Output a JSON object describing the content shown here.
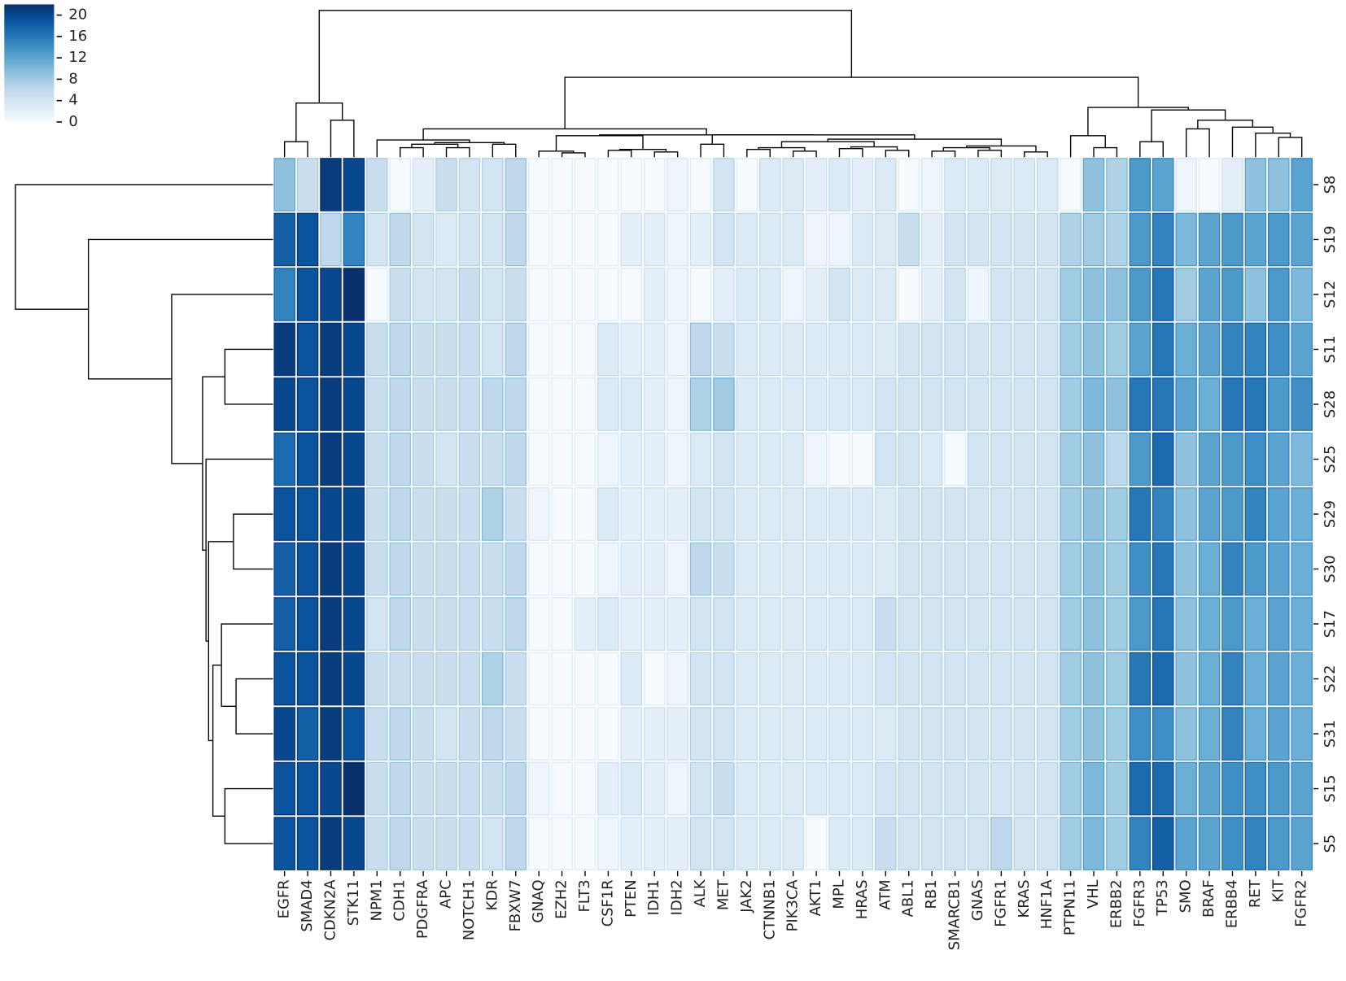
{
  "chart_data": {
    "type": "heatmap",
    "title": "",
    "xlabel": "",
    "ylabel": "",
    "colormap": "Blues",
    "vmin": 0,
    "vmax": 22,
    "colorbar": {
      "ticks": [
        0,
        4,
        8,
        12,
        16,
        20
      ],
      "placement": "top-left"
    },
    "row_dendrogram": true,
    "col_dendrogram": true,
    "columns": [
      "EGFR",
      "SMAD4",
      "CDKN2A",
      "STK11",
      "NPM1",
      "CDH1",
      "PDGFRA",
      "APC",
      "NOTCH1",
      "KDR",
      "FBXW7",
      "GNAQ",
      "EZH2",
      "FLT3",
      "CSF1R",
      "PTEN",
      "IDH1",
      "IDH2",
      "ALK",
      "MET",
      "JAK2",
      "CTNNB1",
      "PIK3CA",
      "AKT1",
      "MPL",
      "HRAS",
      "ATM",
      "ABL1",
      "RB1",
      "SMARCB1",
      "GNAS",
      "FGFR1",
      "KRAS",
      "HNF1A",
      "PTPN11",
      "VHL",
      "ERBB2",
      "FGFR3",
      "TP53",
      "SMO",
      "BRAF",
      "ERBB4",
      "RET",
      "KIT",
      "FGFR2"
    ],
    "rows": [
      "S8",
      "S19",
      "S12",
      "S11",
      "S28",
      "S25",
      "S29",
      "S30",
      "S17",
      "S22",
      "S31",
      "S15",
      "S5"
    ],
    "values": [
      [
        9,
        5,
        21,
        20,
        5,
        0,
        2,
        5,
        4,
        4,
        6,
        0,
        0,
        0,
        0,
        0,
        0,
        1,
        0,
        4,
        0,
        3,
        3,
        2,
        3,
        2,
        3,
        0,
        1,
        3,
        3,
        3,
        3,
        3,
        0,
        9,
        7,
        13,
        12,
        1,
        0,
        2,
        9,
        9,
        12
      ],
      [
        18,
        19,
        6,
        15,
        4,
        6,
        4,
        3,
        4,
        4,
        6,
        0,
        0,
        0,
        0,
        2,
        2,
        1,
        2,
        4,
        3,
        3,
        3,
        1,
        1,
        3,
        3,
        5,
        2,
        4,
        4,
        4,
        4,
        4,
        7,
        8,
        7,
        13,
        15,
        10,
        12,
        13,
        12,
        13,
        12
      ],
      [
        15,
        19,
        20,
        22,
        0,
        5,
        4,
        4,
        5,
        4,
        5,
        0,
        0,
        0,
        0,
        0,
        2,
        1,
        0,
        2,
        3,
        3,
        1,
        2,
        4,
        3,
        3,
        0,
        2,
        4,
        1,
        4,
        4,
        4,
        8,
        9,
        9,
        13,
        16,
        8,
        12,
        13,
        9,
        13,
        10
      ],
      [
        21,
        19,
        21,
        20,
        5,
        6,
        5,
        5,
        5,
        4,
        6,
        0,
        0,
        0,
        3,
        2,
        2,
        1,
        6,
        5,
        3,
        3,
        3,
        3,
        3,
        3,
        3,
        4,
        4,
        4,
        4,
        4,
        4,
        4,
        8,
        9,
        8,
        12,
        16,
        11,
        12,
        15,
        15,
        14,
        12
      ],
      [
        20,
        19,
        21,
        20,
        5,
        6,
        5,
        5,
        5,
        6,
        6,
        0,
        0,
        0,
        3,
        3,
        2,
        1,
        7,
        8,
        3,
        3,
        3,
        3,
        3,
        3,
        4,
        4,
        4,
        4,
        4,
        4,
        4,
        4,
        8,
        10,
        9,
        16,
        16,
        12,
        11,
        16,
        16,
        13,
        14
      ],
      [
        17,
        19,
        21,
        20,
        5,
        6,
        5,
        4,
        5,
        5,
        6,
        0,
        0,
        0,
        1,
        2,
        2,
        1,
        3,
        4,
        3,
        3,
        3,
        1,
        0,
        0,
        4,
        4,
        3,
        0,
        4,
        4,
        4,
        4,
        8,
        9,
        6,
        13,
        17,
        9,
        12,
        13,
        14,
        12,
        10
      ],
      [
        19,
        19,
        20,
        20,
        5,
        6,
        5,
        5,
        5,
        7,
        5,
        1,
        0,
        0,
        3,
        2,
        2,
        2,
        4,
        4,
        3,
        3,
        3,
        3,
        3,
        3,
        3,
        4,
        4,
        4,
        4,
        4,
        4,
        4,
        8,
        9,
        8,
        16,
        15,
        9,
        12,
        13,
        15,
        12,
        11
      ],
      [
        18,
        19,
        21,
        20,
        5,
        6,
        5,
        5,
        5,
        5,
        6,
        0,
        0,
        0,
        1,
        2,
        2,
        1,
        6,
        5,
        3,
        3,
        3,
        3,
        3,
        3,
        3,
        4,
        4,
        4,
        4,
        4,
        4,
        4,
        8,
        9,
        8,
        14,
        16,
        9,
        11,
        15,
        13,
        12,
        11
      ],
      [
        18,
        19,
        21,
        20,
        4,
        6,
        5,
        5,
        5,
        5,
        6,
        0,
        0,
        2,
        3,
        2,
        2,
        2,
        4,
        4,
        3,
        3,
        3,
        3,
        3,
        3,
        5,
        4,
        4,
        4,
        4,
        4,
        4,
        4,
        8,
        9,
        8,
        13,
        16,
        9,
        11,
        13,
        11,
        12,
        11
      ],
      [
        19,
        19,
        21,
        20,
        5,
        5,
        5,
        5,
        5,
        7,
        5,
        0,
        0,
        0,
        0,
        3,
        0,
        1,
        4,
        4,
        3,
        3,
        3,
        3,
        3,
        3,
        4,
        4,
        4,
        4,
        4,
        4,
        4,
        4,
        8,
        9,
        8,
        16,
        17,
        9,
        11,
        15,
        11,
        12,
        11
      ],
      [
        20,
        18,
        21,
        19,
        5,
        6,
        5,
        4,
        5,
        6,
        5,
        0,
        0,
        0,
        0,
        2,
        2,
        2,
        4,
        4,
        3,
        3,
        3,
        3,
        3,
        3,
        3,
        4,
        4,
        4,
        4,
        4,
        4,
        4,
        8,
        9,
        8,
        14,
        14,
        9,
        11,
        15,
        11,
        12,
        11
      ],
      [
        19,
        19,
        20,
        22,
        5,
        6,
        5,
        5,
        5,
        5,
        6,
        1,
        0,
        0,
        2,
        3,
        2,
        1,
        4,
        5,
        3,
        3,
        3,
        3,
        3,
        3,
        4,
        4,
        4,
        4,
        4,
        4,
        4,
        4,
        8,
        10,
        8,
        17,
        17,
        11,
        12,
        14,
        14,
        13,
        12
      ],
      [
        19,
        19,
        21,
        20,
        5,
        6,
        5,
        5,
        5,
        4,
        6,
        0,
        0,
        0,
        1,
        2,
        2,
        2,
        4,
        4,
        3,
        3,
        3,
        0,
        3,
        3,
        5,
        4,
        4,
        4,
        4,
        6,
        4,
        4,
        8,
        10,
        8,
        15,
        18,
        12,
        12,
        14,
        15,
        13,
        12
      ]
    ]
  }
}
